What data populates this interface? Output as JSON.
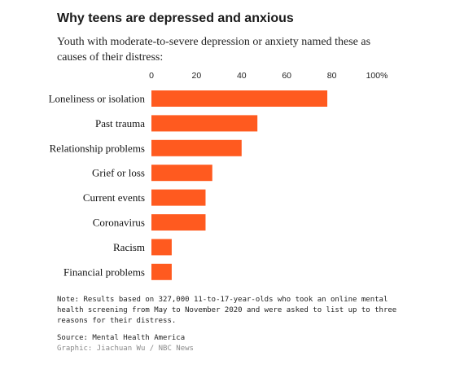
{
  "chart_data": {
    "type": "bar",
    "orientation": "horizontal",
    "title": "Why teens are depressed and anxious",
    "subtitle": "Youth with moderate-to-severe depression or anxiety named these as causes of their distress:",
    "categories": [
      "Loneliness or isolation",
      "Past trauma",
      "Relationship problems",
      "Grief or loss",
      "Current events",
      "Coronavirus",
      "Racism",
      "Financial problems"
    ],
    "values": [
      78,
      47,
      40,
      27,
      24,
      24,
      9,
      9
    ],
    "xlim": [
      0,
      100
    ],
    "ticks": [
      {
        "value": 0,
        "label": "0"
      },
      {
        "value": 20,
        "label": "20"
      },
      {
        "value": 40,
        "label": "40"
      },
      {
        "value": 60,
        "label": "60"
      },
      {
        "value": 80,
        "label": "80"
      },
      {
        "value": 100,
        "label": "100%"
      }
    ],
    "tick_position": "top",
    "grid": false,
    "bar_color": "#ff5a1f"
  },
  "note": "Note: Results based on 327,000 11-to-17-year-olds who took an online mental health screening from May to November 2020 and were asked to list up to three reasons for their distress.",
  "source": "Source: Mental Health America",
  "credit": "Graphic: Jiachuan Wu / NBC News"
}
